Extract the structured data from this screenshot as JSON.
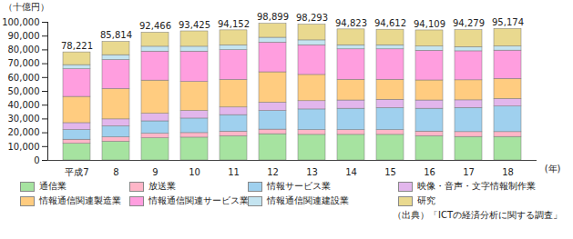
{
  "chart_data": {
    "type": "bar",
    "stacked": true,
    "y_label": "（十億円）",
    "x_label": "(年)",
    "caption": "（出典）「ICTの経済分析に関する調査」",
    "categories": [
      "平成7",
      "8",
      "9",
      "10",
      "11",
      "12",
      "13",
      "14",
      "15",
      "16",
      "17",
      "18"
    ],
    "series": [
      {
        "name": "通信業",
        "color": "#a6e3a0",
        "values": [
          12000,
          13500,
          16000,
          16500,
          17500,
          19000,
          18500,
          18500,
          18500,
          17500,
          17000,
          17000
        ]
      },
      {
        "name": "放送業",
        "color": "#ffb6c8",
        "values": [
          3000,
          3200,
          3300,
          3300,
          3300,
          3300,
          3400,
          3400,
          3400,
          3400,
          3500,
          3500
        ]
      },
      {
        "name": "情報サービス業",
        "color": "#9fd0ee",
        "values": [
          7000,
          8000,
          9000,
          10500,
          12000,
          13500,
          15000,
          15500,
          16000,
          16500,
          17500,
          18500
        ]
      },
      {
        "name": "映像・音声・文字情報制作業",
        "color": "#e2b6ec",
        "values": [
          5000,
          5000,
          5500,
          5500,
          5500,
          6000,
          6000,
          6000,
          6000,
          6000,
          5500,
          5500
        ]
      },
      {
        "name": "情報通信関連製造業",
        "color": "#ffcc80",
        "values": [
          19000,
          22000,
          24000,
          21000,
          20000,
          22000,
          19000,
          15000,
          14500,
          14500,
          14500,
          14500
        ]
      },
      {
        "name": "情報通信関連サービス業",
        "color": "#ff9edf",
        "values": [
          20000,
          21000,
          21000,
          22000,
          21500,
          21500,
          21500,
          22000,
          22000,
          21500,
          21000,
          20500
        ]
      },
      {
        "name": "情報通信関連建設業",
        "color": "#c4e4f0",
        "values": [
          3000,
          3500,
          3500,
          3500,
          3500,
          3500,
          3500,
          3000,
          3000,
          3000,
          3000,
          3000
        ]
      },
      {
        "name": "研究",
        "color": "#e9d98f",
        "values": [
          9221,
          9614,
          10166,
          11125,
          10852,
          10099,
          11393,
          11423,
          11212,
          11709,
          12279,
          12674
        ]
      }
    ],
    "totals": [
      78221,
      85814,
      92466,
      93425,
      94152,
      98899,
      98293,
      94823,
      94612,
      94109,
      94279,
      95174
    ],
    "total_labels": [
      "78,221",
      "85,814",
      "92,466",
      "93,425",
      "94,152",
      "98,899",
      "98,293",
      "94,823",
      "94,612",
      "94,109",
      "94,279",
      "95,174"
    ],
    "ylim": [
      0,
      100000
    ],
    "yticks": [
      0,
      {
        "value": 10000,
        "label": "10,000"
      },
      {
        "value": 20000,
        "label": "20,000"
      },
      {
        "value": 30000,
        "label": "30,000"
      },
      {
        "value": 40000,
        "label": "40,000"
      },
      {
        "value": 50000,
        "label": "50,000"
      },
      {
        "value": 60000,
        "label": "60,000"
      },
      {
        "value": 70000,
        "label": "70,000"
      },
      {
        "value": 80000,
        "label": "80,000"
      },
      {
        "value": 90000,
        "label": "90,000"
      },
      {
        "value": 100000,
        "label": "100,000"
      }
    ],
    "grid": false,
    "data_labels": true,
    "legend": "bottom"
  }
}
